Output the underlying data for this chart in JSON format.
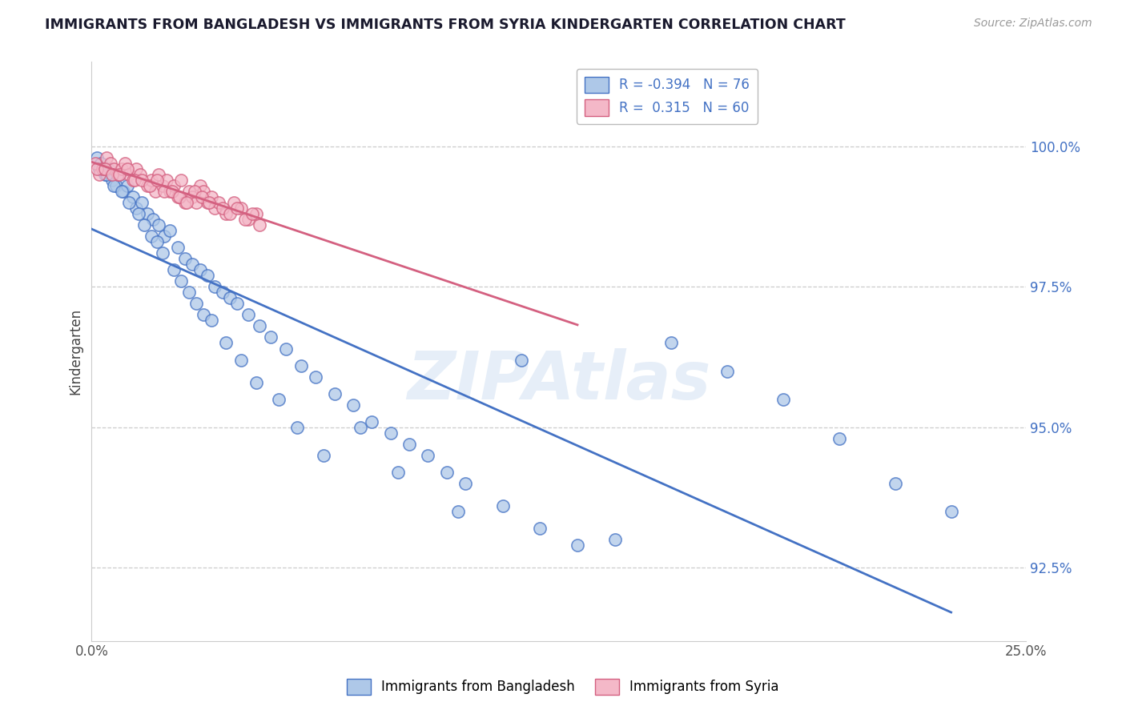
{
  "title": "IMMIGRANTS FROM BANGLADESH VS IMMIGRANTS FROM SYRIA KINDERGARTEN CORRELATION CHART",
  "source_text": "Source: ZipAtlas.com",
  "ylabel": "Kindergarten",
  "xlim": [
    0.0,
    25.0
  ],
  "ylim": [
    91.2,
    101.5
  ],
  "yticks": [
    92.5,
    95.0,
    97.5,
    100.0
  ],
  "ytick_labels": [
    "92.5%",
    "95.0%",
    "97.5%",
    "100.0%"
  ],
  "xtick_vals": [
    0.0,
    3.125,
    6.25,
    9.375,
    12.5,
    15.625,
    18.75,
    21.875,
    25.0
  ],
  "xtick_labels_show": [
    "0.0%",
    "",
    "",
    "",
    "",
    "",
    "",
    "",
    "25.0%"
  ],
  "legend1_label": "R = -0.394   N = 76",
  "legend2_label": "R =  0.315   N = 60",
  "bangladesh_face": "#aec8e8",
  "bangladesh_edge": "#4472c4",
  "syria_face": "#f4b8c8",
  "syria_edge": "#d46080",
  "trend_bangladesh": "#4472c4",
  "trend_syria": "#d46080",
  "watermark": "ZIPAtlas",
  "background_color": "#ffffff",
  "grid_color": "#cccccc",
  "bang_x": [
    0.15,
    0.25,
    0.35,
    0.45,
    0.55,
    0.65,
    0.75,
    0.85,
    0.95,
    1.1,
    1.2,
    1.35,
    1.5,
    1.65,
    1.8,
    1.95,
    2.1,
    2.3,
    2.5,
    2.7,
    2.9,
    3.1,
    3.3,
    3.5,
    3.7,
    3.9,
    4.2,
    4.5,
    4.8,
    5.2,
    5.6,
    6.0,
    6.5,
    7.0,
    7.5,
    8.0,
    8.5,
    9.0,
    9.5,
    10.0,
    11.0,
    12.0,
    13.0,
    14.0,
    15.5,
    17.0,
    18.5,
    20.0,
    21.5,
    23.0,
    0.2,
    0.4,
    0.6,
    0.8,
    1.0,
    1.25,
    1.4,
    1.6,
    1.75,
    1.9,
    2.2,
    2.4,
    2.6,
    2.8,
    3.0,
    3.2,
    3.6,
    4.0,
    4.4,
    5.0,
    5.5,
    6.2,
    7.2,
    8.2,
    9.8,
    11.5
  ],
  "bang_y": [
    99.8,
    99.7,
    99.5,
    99.6,
    99.4,
    99.3,
    99.5,
    99.2,
    99.3,
    99.1,
    98.9,
    99.0,
    98.8,
    98.7,
    98.6,
    98.4,
    98.5,
    98.2,
    98.0,
    97.9,
    97.8,
    97.7,
    97.5,
    97.4,
    97.3,
    97.2,
    97.0,
    96.8,
    96.6,
    96.4,
    96.1,
    95.9,
    95.6,
    95.4,
    95.1,
    94.9,
    94.7,
    94.5,
    94.2,
    94.0,
    93.6,
    93.2,
    92.9,
    93.0,
    96.5,
    96.0,
    95.5,
    94.8,
    94.0,
    93.5,
    99.6,
    99.5,
    99.3,
    99.2,
    99.0,
    98.8,
    98.6,
    98.4,
    98.3,
    98.1,
    97.8,
    97.6,
    97.4,
    97.2,
    97.0,
    96.9,
    96.5,
    96.2,
    95.8,
    95.5,
    95.0,
    94.5,
    95.0,
    94.2,
    93.5,
    96.2
  ],
  "syr_x": [
    0.1,
    0.2,
    0.3,
    0.4,
    0.5,
    0.6,
    0.7,
    0.8,
    0.9,
    1.0,
    1.1,
    1.2,
    1.3,
    1.5,
    1.6,
    1.7,
    1.8,
    1.9,
    2.0,
    2.1,
    2.2,
    2.3,
    2.4,
    2.5,
    2.6,
    2.7,
    2.8,
    2.9,
    3.0,
    3.1,
    3.2,
    3.3,
    3.4,
    3.6,
    3.8,
    4.0,
    4.2,
    4.4,
    0.15,
    0.35,
    0.55,
    0.75,
    0.95,
    1.15,
    1.35,
    1.55,
    1.75,
    1.95,
    2.15,
    2.35,
    2.55,
    2.75,
    2.95,
    3.15,
    3.5,
    3.7,
    3.9,
    4.1,
    4.3,
    4.5
  ],
  "syr_y": [
    99.7,
    99.5,
    99.6,
    99.8,
    99.7,
    99.6,
    99.5,
    99.6,
    99.7,
    99.5,
    99.4,
    99.6,
    99.5,
    99.3,
    99.4,
    99.2,
    99.5,
    99.3,
    99.4,
    99.2,
    99.3,
    99.1,
    99.4,
    99.0,
    99.2,
    99.1,
    99.0,
    99.3,
    99.2,
    99.0,
    99.1,
    98.9,
    99.0,
    98.8,
    99.0,
    98.9,
    98.7,
    98.8,
    99.6,
    99.6,
    99.5,
    99.5,
    99.6,
    99.4,
    99.4,
    99.3,
    99.4,
    99.2,
    99.2,
    99.1,
    99.0,
    99.2,
    99.1,
    99.0,
    98.9,
    98.8,
    98.9,
    98.7,
    98.8,
    98.6
  ]
}
